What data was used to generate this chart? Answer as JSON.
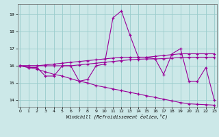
{
  "xlabel": "Windchill (Refroidissement éolien,°C)",
  "bg_color": "#cce8e8",
  "grid_color": "#99cccc",
  "line_color": "#990099",
  "x_ticks": [
    0,
    1,
    2,
    3,
    4,
    5,
    6,
    7,
    8,
    9,
    10,
    11,
    12,
    13,
    14,
    15,
    16,
    17,
    18,
    19,
    20,
    21,
    22,
    23
  ],
  "y_ticks": [
    14,
    15,
    16,
    17,
    18,
    19
  ],
  "xlim": [
    -0.3,
    23.3
  ],
  "ylim": [
    13.6,
    19.6
  ],
  "series": {
    "zigzag": {
      "x": [
        0,
        1,
        2,
        3,
        4,
        5,
        6,
        7,
        8,
        9,
        10,
        11,
        12,
        13,
        14,
        15,
        16,
        17,
        18,
        19,
        20,
        21,
        22,
        23
      ],
      "y": [
        16.0,
        15.9,
        15.9,
        15.4,
        15.4,
        16.0,
        16.0,
        15.1,
        15.2,
        16.0,
        16.1,
        18.8,
        19.2,
        17.8,
        16.5,
        16.5,
        16.4,
        15.5,
        16.7,
        17.0,
        15.1,
        15.1,
        15.9,
        14.0
      ]
    },
    "upper": {
      "x": [
        0,
        1,
        2,
        3,
        4,
        5,
        6,
        7,
        8,
        9,
        10,
        11,
        12,
        13,
        14,
        15,
        16,
        17,
        18,
        19,
        20,
        21,
        22,
        23
      ],
      "y": [
        16.0,
        16.0,
        16.0,
        16.05,
        16.1,
        16.15,
        16.2,
        16.25,
        16.3,
        16.35,
        16.4,
        16.45,
        16.5,
        16.5,
        16.5,
        16.5,
        16.55,
        16.6,
        16.65,
        16.7,
        16.7,
        16.7,
        16.7,
        16.7
      ]
    },
    "lower": {
      "x": [
        0,
        1,
        2,
        3,
        4,
        5,
        6,
        7,
        8,
        9,
        10,
        11,
        12,
        13,
        14,
        15,
        16,
        17,
        18,
        19,
        20,
        21,
        22,
        23
      ],
      "y": [
        16.0,
        15.9,
        15.8,
        15.65,
        15.5,
        15.4,
        15.25,
        15.1,
        15.0,
        14.85,
        14.75,
        14.65,
        14.55,
        14.45,
        14.35,
        14.25,
        14.15,
        14.05,
        13.95,
        13.85,
        13.78,
        13.75,
        13.73,
        13.7
      ]
    },
    "flat": {
      "x": [
        0,
        1,
        2,
        3,
        4,
        5,
        6,
        7,
        8,
        9,
        10,
        11,
        12,
        13,
        14,
        15,
        16,
        17,
        18,
        19,
        20,
        21,
        22,
        23
      ],
      "y": [
        16.0,
        16.0,
        16.0,
        16.0,
        16.0,
        16.0,
        16.0,
        16.05,
        16.1,
        16.15,
        16.2,
        16.25,
        16.3,
        16.35,
        16.38,
        16.4,
        16.4,
        16.42,
        16.45,
        16.48,
        16.5,
        16.5,
        16.5,
        16.5
      ]
    }
  }
}
